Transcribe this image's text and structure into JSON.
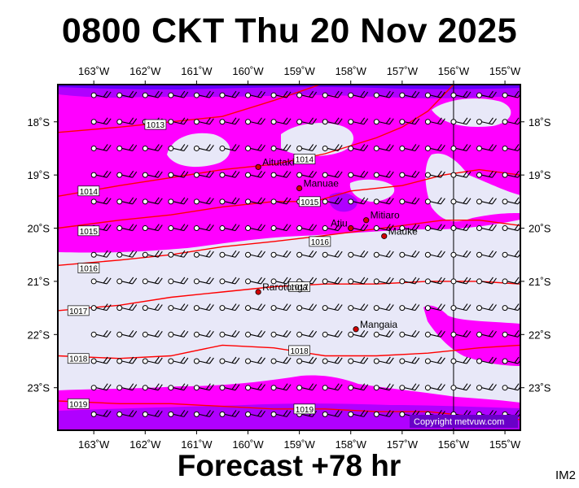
{
  "title": "0800 CKT Thu 20 Nov 2025",
  "footer": "Forecast +78 hr",
  "code": "IM2",
  "copyright": "Copyright metvuw.com",
  "colors": {
    "background_field": "#e8e8f8",
    "rain_magenta": "#ff00ff",
    "rain_purple": "#b000ff",
    "rain_blue": "#6000ff",
    "isobar": "#ff0000",
    "meridian": "#000000"
  },
  "chart_data": {
    "type": "map",
    "lon_labels": [
      "163˚W",
      "162˚W",
      "161˚W",
      "160˚W",
      "159˚W",
      "158˚W",
      "157˚W",
      "156˚W",
      "155˚W"
    ],
    "lon_values": [
      -163,
      -162,
      -161,
      -160,
      -159,
      -158,
      -157,
      -156,
      -155
    ],
    "lat_labels": [
      "18˚S",
      "19˚S",
      "20˚S",
      "21˚S",
      "22˚S",
      "23˚S"
    ],
    "lat_values": [
      -18,
      -19,
      -20,
      -21,
      -22,
      -23
    ],
    "lon_range": [
      -163.7,
      -154.7
    ],
    "lat_range": [
      -17.3,
      -23.8
    ],
    "isobars": [
      {
        "label": "1013",
        "points": [
          [
            -163.7,
            -18.2
          ],
          [
            -162.5,
            -18.1
          ],
          [
            -161.5,
            -18.0
          ],
          [
            -160.5,
            -17.9
          ],
          [
            -159.5,
            -17.6
          ],
          [
            -158.6,
            -17.3
          ]
        ]
      },
      {
        "label": "1014",
        "points": [
          [
            -163.7,
            -19.4
          ],
          [
            -162.5,
            -19.2
          ],
          [
            -161.5,
            -19.05
          ],
          [
            -160.5,
            -18.9
          ],
          [
            -159.5,
            -18.8
          ],
          [
            -158.5,
            -18.6
          ],
          [
            -157.5,
            -18.3
          ],
          [
            -157.0,
            -18.1
          ],
          [
            -156.5,
            -17.8
          ],
          [
            -156.0,
            -17.3
          ]
        ]
      },
      {
        "label": "1015",
        "points": [
          [
            -163.7,
            -20.0
          ],
          [
            -162.5,
            -19.85
          ],
          [
            -161.5,
            -19.75
          ],
          [
            -160.5,
            -19.6
          ],
          [
            -159.5,
            -19.5
          ],
          [
            -158.7,
            -19.5
          ],
          [
            -158.0,
            -19.3
          ],
          [
            -157.0,
            -19.2
          ],
          [
            -156.2,
            -19.0
          ],
          [
            -155.5,
            -18.9
          ],
          [
            -154.7,
            -19.0
          ]
        ]
      },
      {
        "label": "1016",
        "points": [
          [
            -163.7,
            -20.7
          ],
          [
            -162.5,
            -20.6
          ],
          [
            -161.5,
            -20.5
          ],
          [
            -160.5,
            -20.35
          ],
          [
            -159.5,
            -20.25
          ],
          [
            -158.6,
            -20.15
          ],
          [
            -157.8,
            -20.05
          ],
          [
            -157.0,
            -19.95
          ],
          [
            -156.2,
            -19.85
          ],
          [
            -155.5,
            -19.85
          ],
          [
            -154.7,
            -19.95
          ]
        ]
      },
      {
        "label": "1017",
        "points": [
          [
            -163.7,
            -21.55
          ],
          [
            -162.5,
            -21.45
          ],
          [
            -161.5,
            -21.3
          ],
          [
            -160.5,
            -21.2
          ],
          [
            -159.5,
            -21.1
          ],
          [
            -158.5,
            -21.05
          ],
          [
            -157.5,
            -21.05
          ],
          [
            -156.5,
            -21.0
          ],
          [
            -155.5,
            -21.0
          ],
          [
            -154.7,
            -21.05
          ]
        ]
      },
      {
        "label": "1018",
        "points": [
          [
            -163.7,
            -22.4
          ],
          [
            -162.5,
            -22.45
          ],
          [
            -161.5,
            -22.4
          ],
          [
            -160.5,
            -22.2
          ],
          [
            -159.5,
            -22.25
          ],
          [
            -158.5,
            -22.4
          ],
          [
            -157.5,
            -22.4
          ],
          [
            -156.5,
            -22.35
          ],
          [
            -155.5,
            -22.25
          ],
          [
            -154.7,
            -22.2
          ]
        ]
      },
      {
        "label": "1019",
        "points": [
          [
            -163.7,
            -23.25
          ],
          [
            -162.5,
            -23.3
          ],
          [
            -161.5,
            -23.3
          ],
          [
            -160.5,
            -23.35
          ],
          [
            -159.5,
            -23.4
          ],
          [
            -158.5,
            -23.4
          ],
          [
            -157.5,
            -23.45
          ],
          [
            -156.5,
            -23.45
          ],
          [
            -155.5,
            -23.55
          ],
          [
            -154.7,
            -23.6
          ]
        ]
      }
    ],
    "isobar_label_positions": [
      {
        "label": "1013",
        "lon": -161.8,
        "lat": -18.05
      },
      {
        "label": "1014",
        "lon": -158.9,
        "lat": -18.7
      },
      {
        "label": "1014",
        "lon": -163.1,
        "lat": -19.3
      },
      {
        "label": "1015",
        "lon": -158.8,
        "lat": -19.5
      },
      {
        "label": "1015",
        "lon": -163.1,
        "lat": -20.05
      },
      {
        "label": "1016",
        "lon": -158.6,
        "lat": -20.25
      },
      {
        "label": "1016",
        "lon": -163.1,
        "lat": -20.75
      },
      {
        "label": "1017",
        "lon": -159.0,
        "lat": -21.1
      },
      {
        "label": "1017",
        "lon": -163.3,
        "lat": -21.55
      },
      {
        "label": "1018",
        "lon": -159.0,
        "lat": -22.3
      },
      {
        "label": "1018",
        "lon": -163.3,
        "lat": -22.45
      },
      {
        "label": "1019",
        "lon": -158.9,
        "lat": -23.4
      },
      {
        "label": "1019",
        "lon": -163.3,
        "lat": -23.3
      }
    ],
    "places": [
      {
        "name": "Aitutaki",
        "lon": -159.8,
        "lat": -18.85
      },
      {
        "name": "Manuae",
        "lon": -159.0,
        "lat": -19.25
      },
      {
        "name": "Mitiaro",
        "lon": -157.7,
        "lat": -19.85
      },
      {
        "name": "Atiu",
        "lon": -158.0,
        "lat": -20.0
      },
      {
        "name": "Mauke",
        "lon": -157.35,
        "lat": -20.15
      },
      {
        "name": "Rarotonga",
        "lon": -159.8,
        "lat": -21.2
      },
      {
        "name": "Mangaia",
        "lon": -157.9,
        "lat": -21.9
      }
    ],
    "meridian_lon": -156.0,
    "wind_rows_lat": [
      -17.5,
      -18.0,
      -18.5,
      -19.0,
      -19.5,
      -20.0,
      -20.5,
      -21.0,
      -21.5,
      -22.0,
      -22.5,
      -23.0,
      -23.5
    ],
    "wind_cols_lon": [
      -163.0,
      -162.5,
      -162.0,
      -161.5,
      -161.0,
      -160.5,
      -160.0,
      -159.5,
      -159.0,
      -158.5,
      -158.0,
      -157.5,
      -157.0,
      -156.5,
      -156.0,
      -155.5,
      -155.0
    ]
  }
}
